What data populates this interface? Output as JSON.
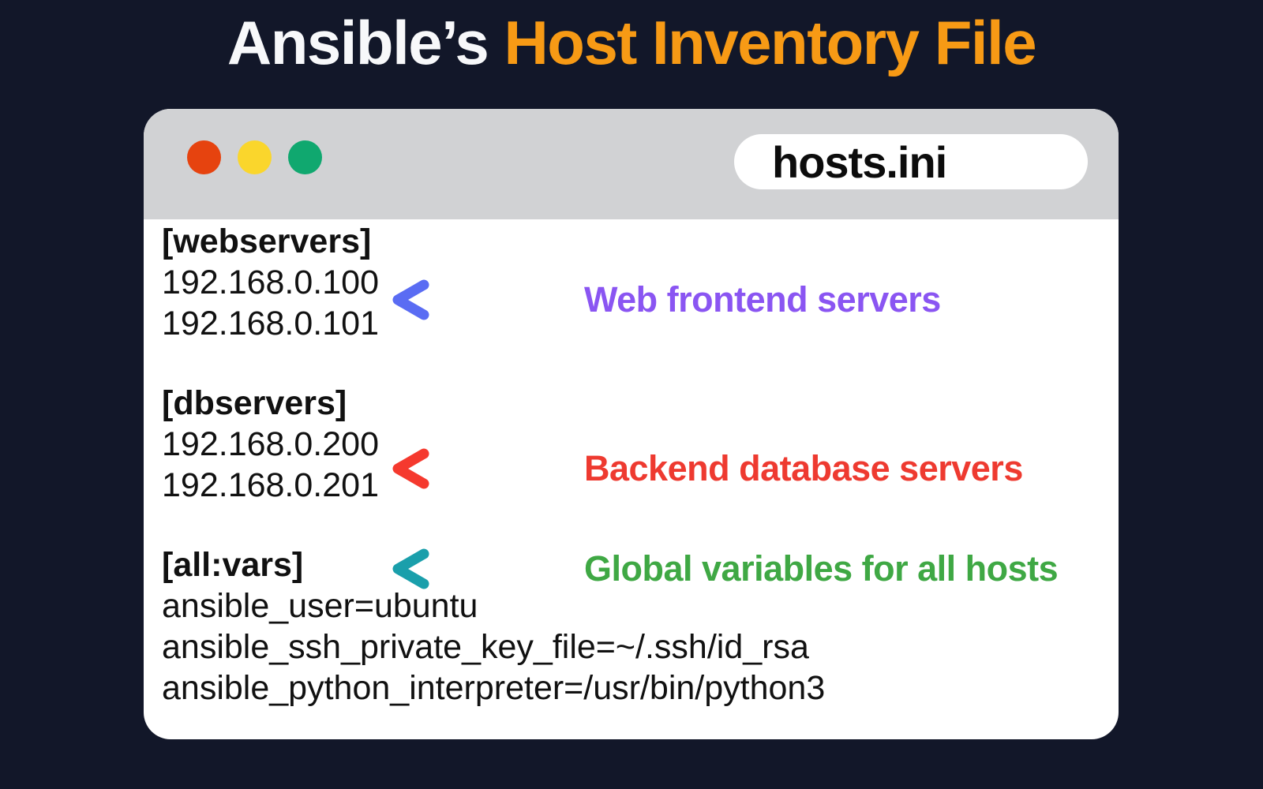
{
  "title": {
    "prefix": "Ansible’s ",
    "highlight": "Host Inventory File"
  },
  "colors": {
    "background": "#121729",
    "title_prefix": "#f7f8fa",
    "title_highlight": "#f79a15",
    "titlebar": "#d1d2d4",
    "window_body": "#ffffff",
    "code_text": "#111111"
  },
  "window": {
    "filename": "hosts.ini",
    "controls": [
      {
        "name": "close",
        "color": "#e6430f"
      },
      {
        "name": "minimize",
        "color": "#fad62c"
      },
      {
        "name": "zoom",
        "color": "#10a86f"
      }
    ]
  },
  "inventory": {
    "groups": [
      {
        "header": "[webservers]",
        "lines": [
          "192.168.0.100",
          "192.168.0.101"
        ]
      },
      {
        "header": "[dbservers]",
        "lines": [
          "192.168.0.200",
          "192.168.0.201"
        ]
      },
      {
        "header": "[all:vars]",
        "lines": [
          "ansible_user=ubuntu",
          "ansible_ssh_private_key_file=~/.ssh/id_rsa",
          "ansible_python_interpreter=/usr/bin/python3"
        ]
      }
    ]
  },
  "annotations": [
    {
      "label": "Web frontend servers",
      "label_color": "#8a55f2",
      "arrow_head_color": "#5a6cf3",
      "arrow_tail_color": "#fa7ed2"
    },
    {
      "label": "Backend database servers",
      "label_color": "#ee3a30",
      "arrow_head_color": "#f5392e",
      "arrow_tail_color": "#ffa15e"
    },
    {
      "label": "Global variables for all hosts",
      "label_color": "#3fa844",
      "arrow_head_color": "#1a9fab",
      "arrow_tail_color": "#90dc7a"
    }
  ]
}
